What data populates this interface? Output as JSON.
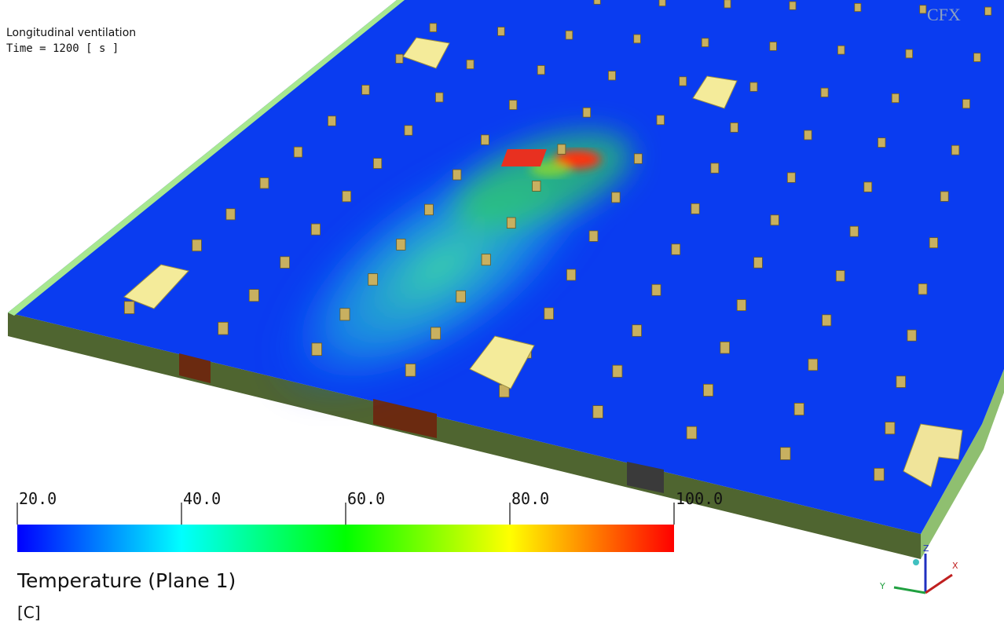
{
  "annotation": {
    "lines": [
      "Longitudinal ventilation",
      "Time = 1200 [ s ]"
    ]
  },
  "logo": "CFX",
  "colorbar": {
    "title": "Temperature (Plane 1)",
    "unit": "[C]",
    "range": [
      20,
      100
    ],
    "ticks": [
      {
        "value": 20,
        "label": "20.0"
      },
      {
        "value": 40,
        "label": "40.0"
      },
      {
        "value": 60,
        "label": "60.0"
      },
      {
        "value": 80,
        "label": "80.0"
      },
      {
        "value": 100,
        "label": "100.0"
      }
    ]
  },
  "triad": {
    "x": "X",
    "y": "Y",
    "z": "Z"
  }
}
